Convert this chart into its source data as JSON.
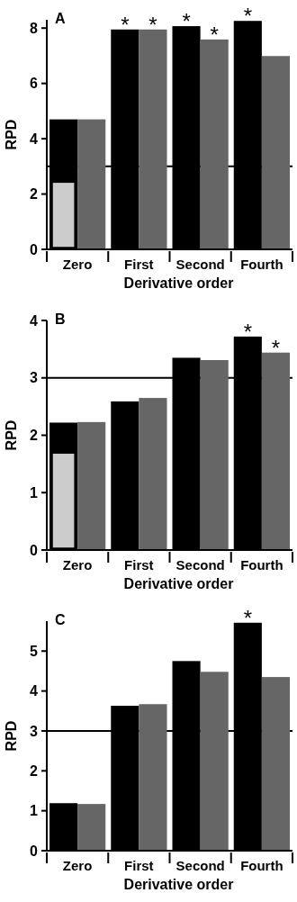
{
  "chart_data": [
    {
      "type": "bar",
      "title": "A",
      "xlabel": "Derivative order",
      "ylabel": "RPD",
      "categories": [
        "Zero",
        "First",
        "Second",
        "Fourth"
      ],
      "ylim": [
        0,
        8.3
      ],
      "yticks": [
        0,
        2,
        4,
        6,
        8
      ],
      "grid": false,
      "ref_lines": [
        {
          "axis": "y",
          "value": 3
        }
      ],
      "series": [
        {
          "color": "#000000",
          "values": [
            4.7,
            7.95,
            8.07,
            8.26
          ],
          "value_labels": [
            null,
            "*",
            "*",
            "*"
          ]
        },
        {
          "color": "#666666",
          "values": [
            4.7,
            7.95,
            7.59,
            6.99
          ],
          "value_labels": [
            null,
            "*",
            "*",
            null
          ]
        },
        {
          "color": "#cccccc",
          "values": [
            2.43,
            null,
            null,
            null
          ]
        }
      ]
    },
    {
      "type": "bar",
      "title": "B",
      "xlabel": "Derivative order",
      "ylabel": "RPD",
      "categories": [
        "Zero",
        "First",
        "Second",
        "Fourth"
      ],
      "ylim": [
        0,
        4
      ],
      "yticks": [
        0,
        1,
        2,
        3,
        4
      ],
      "grid": false,
      "ref_lines": [
        {
          "axis": "y",
          "value": 3
        }
      ],
      "series": [
        {
          "color": "#000000",
          "values": [
            2.22,
            2.59,
            3.35,
            3.72
          ],
          "value_labels": [
            null,
            null,
            null,
            "*"
          ]
        },
        {
          "color": "#666666",
          "values": [
            2.23,
            2.65,
            3.31,
            3.44
          ],
          "value_labels": [
            null,
            null,
            null,
            "*"
          ]
        },
        {
          "color": "#cccccc",
          "values": [
            1.69,
            null,
            null,
            null
          ]
        }
      ]
    },
    {
      "type": "bar",
      "title": "C",
      "xlabel": "Derivative order",
      "ylabel": "RPD",
      "categories": [
        "Zero",
        "First",
        "Second",
        "Fourth"
      ],
      "ylim": [
        0,
        5.75
      ],
      "yticks": [
        0,
        1,
        2,
        3,
        4,
        5
      ],
      "grid": false,
      "ref_lines": [
        {
          "axis": "y",
          "value": 3
        }
      ],
      "series": [
        {
          "color": "#000000",
          "values": [
            1.19,
            3.63,
            4.75,
            5.71
          ],
          "value_labels": [
            null,
            null,
            null,
            "*"
          ]
        },
        {
          "color": "#666666",
          "values": [
            1.17,
            3.67,
            4.48,
            4.35
          ],
          "value_labels": [
            null,
            null,
            null,
            null
          ]
        }
      ]
    }
  ]
}
